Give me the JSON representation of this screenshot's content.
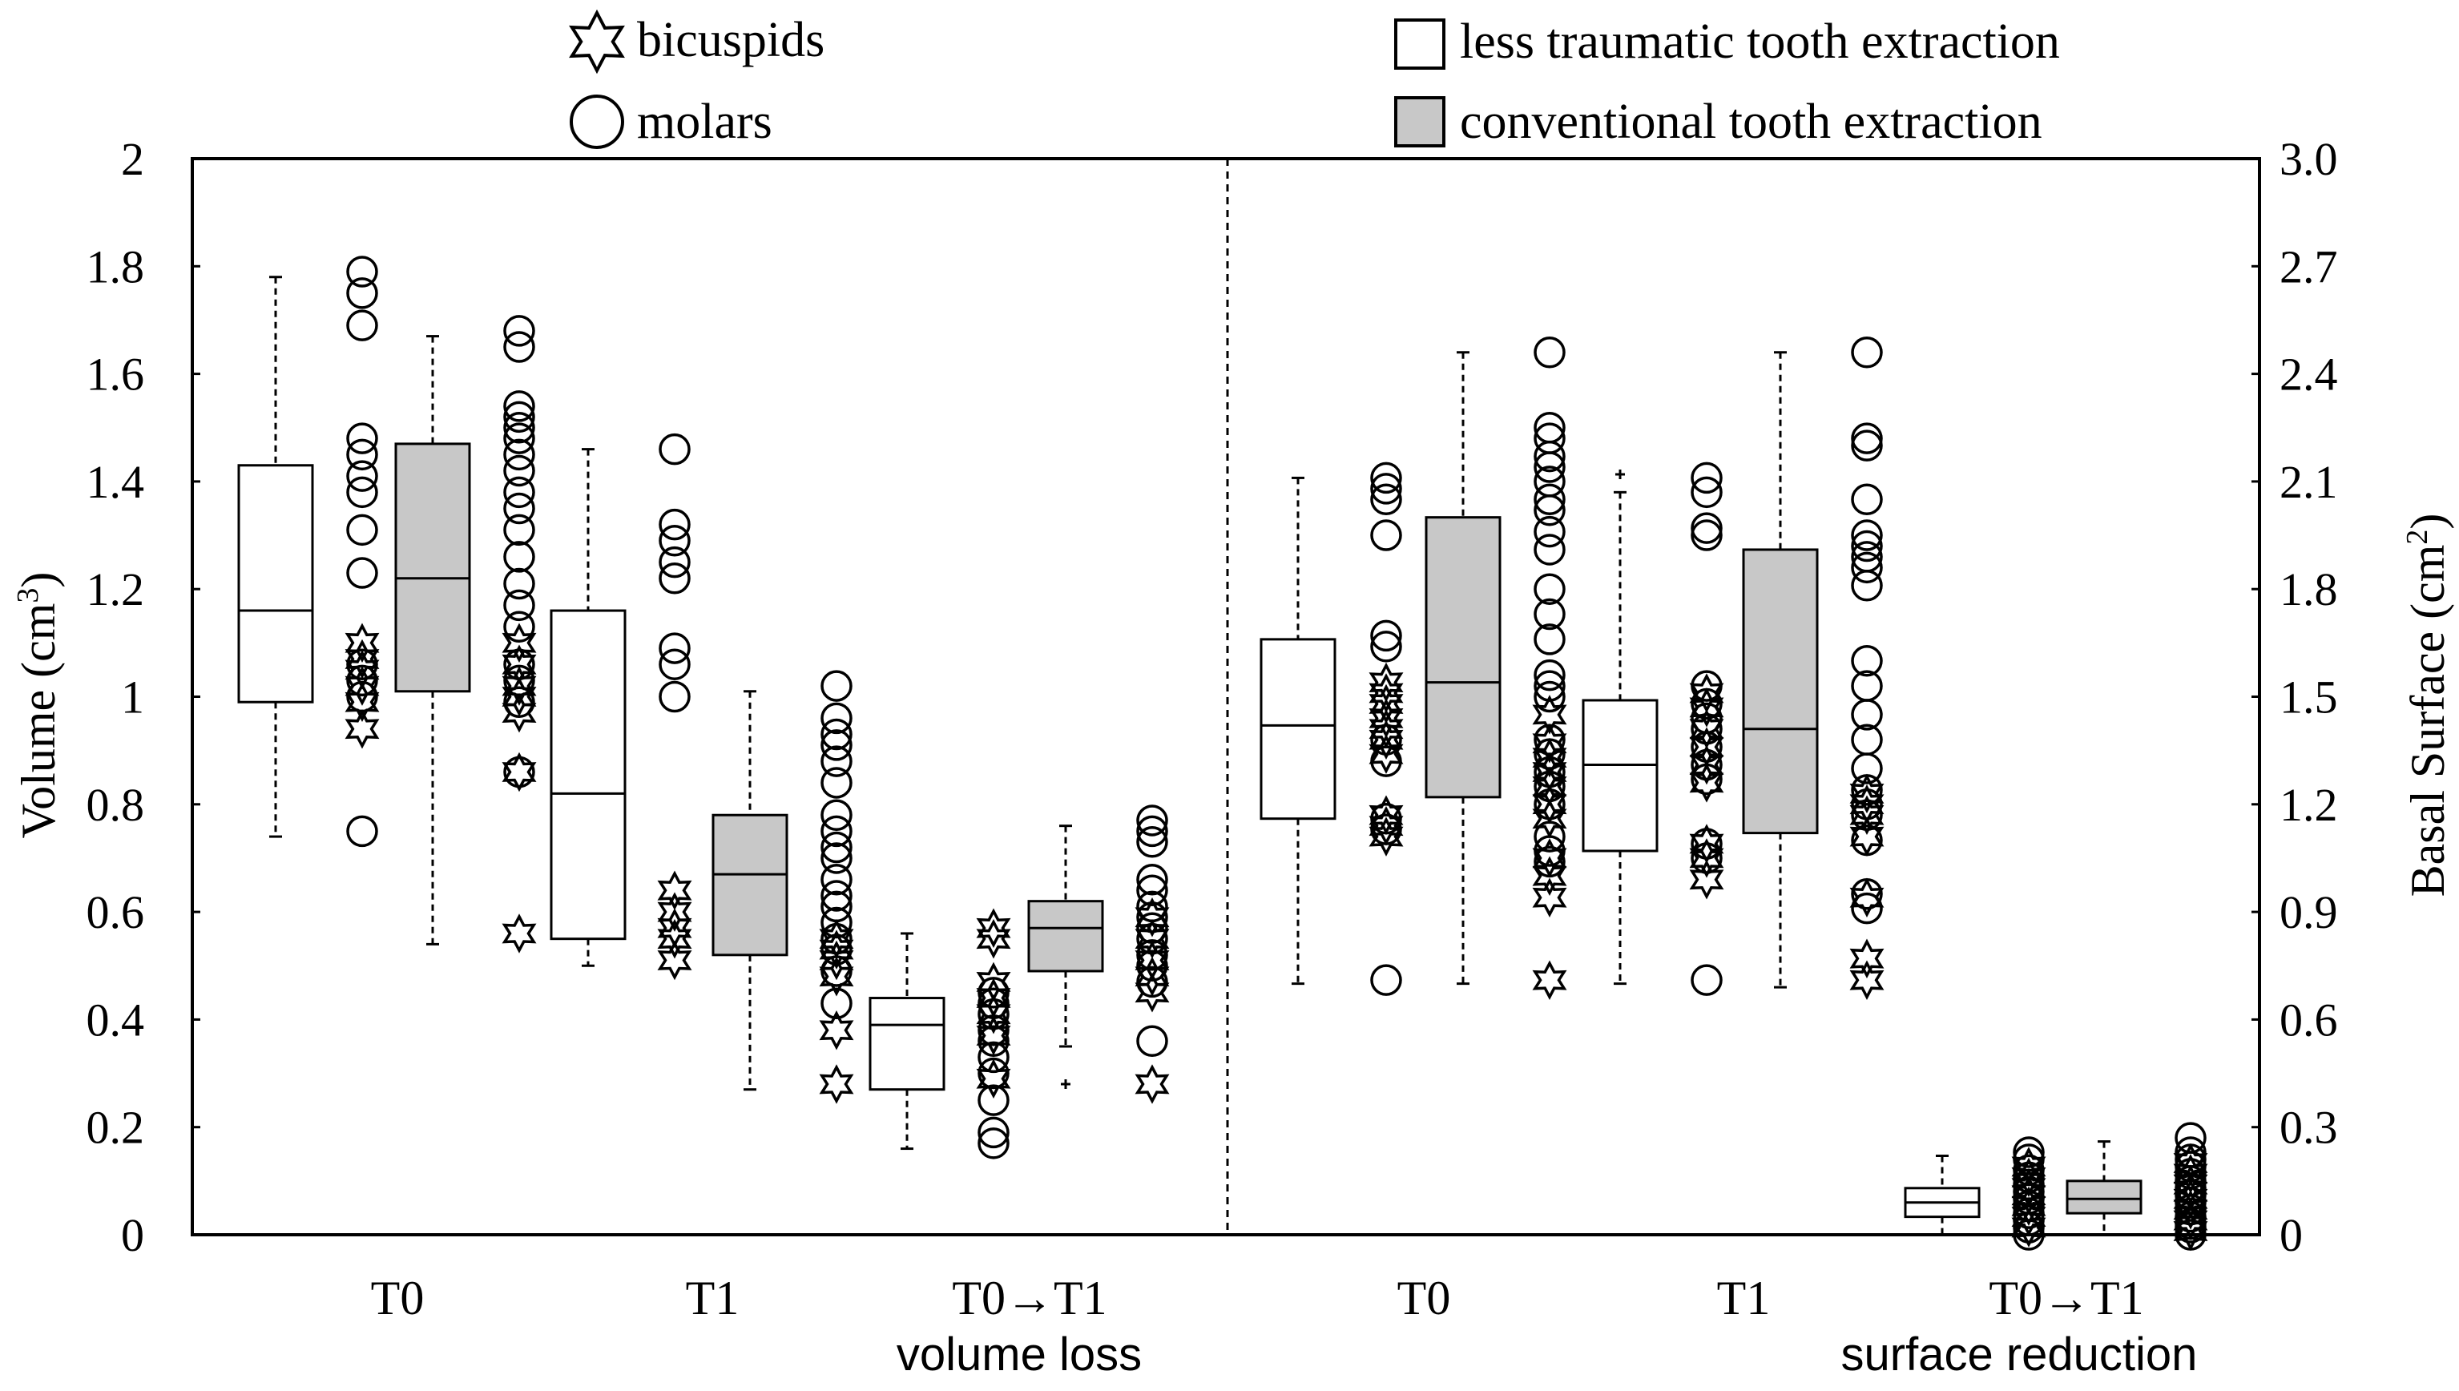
{
  "chart_data": {
    "type": "boxplot",
    "legend": {
      "placement": "top",
      "markers": [
        {
          "symbol": "star",
          "label": "bicuspids"
        },
        {
          "symbol": "circle",
          "label": "molars"
        }
      ],
      "boxes": [
        {
          "fill": "white",
          "label": "less traumatic tooth extraction"
        },
        {
          "fill": "gray",
          "label": "conventional tooth extraction"
        }
      ]
    },
    "colors": {
      "ink": "#000000",
      "conventional_fill": "#c8c8c8",
      "less_traumatic_fill": "#ffffff"
    },
    "left_axis": {
      "label": "Volume (cm",
      "label_sup": "3",
      "label_end": ")",
      "ylim": [
        0,
        2
      ],
      "ticks": [
        0,
        0.2,
        0.4,
        0.6,
        0.8,
        1,
        1.2,
        1.4,
        1.6,
        1.8,
        2
      ],
      "tick_labels": [
        "0",
        "0.2",
        "0.4",
        "0.6",
        "0.8",
        "1",
        "1.2",
        "1.4",
        "1.6",
        "1.8",
        "2"
      ]
    },
    "right_axis": {
      "label": "Basal Surface (cm",
      "label_sup": "2",
      "label_end": ")",
      "ylim": [
        0,
        3
      ],
      "ticks": [
        0,
        0.3,
        0.6,
        0.9,
        1.2,
        1.5,
        1.8,
        2.1,
        2.4,
        2.7,
        3
      ],
      "tick_labels": [
        "0",
        "0.3",
        "0.6",
        "0.9",
        "1.2",
        "1.5",
        "1.8",
        "2.1",
        "2.4",
        "2.7",
        "3.0"
      ]
    },
    "x_groups": [
      {
        "label": "T0",
        "center": 1.5
      },
      {
        "label": "T1",
        "center": 3.5
      },
      {
        "label": "T0→T1",
        "center": 5.5
      },
      {
        "label": "T0",
        "center": 8
      },
      {
        "label": "T1",
        "center": 10
      },
      {
        "label": "T0→T1",
        "center": 12
      }
    ],
    "section_labels": [
      {
        "text": "volume loss",
        "center": 5.4
      },
      {
        "text": "surface  reduction",
        "center": 11.5
      }
    ],
    "divider_x": 6.5,
    "x_domain": [
      0,
      13.2
    ],
    "boxes": [
      {
        "panel": "volume",
        "group": "T0",
        "condition": "less traumatic tooth extraction",
        "x": 0.5,
        "whisker_low": 0.74,
        "q1": 0.99,
        "median": 1.16,
        "q3": 1.43,
        "whisker_high": 1.78,
        "outliers": []
      },
      {
        "panel": "volume",
        "group": "T0",
        "condition": "conventional tooth extraction",
        "x": 2.5,
        "whisker_low": 0.54,
        "q1": 1.01,
        "median": 1.22,
        "q3": 1.47,
        "whisker_high": 1.67,
        "outliers": []
      },
      {
        "panel": "volume",
        "group": "T1",
        "condition": "less traumatic tooth extraction",
        "x": 4.5,
        "whisker_low": 0.5,
        "q1": 0.55,
        "median": 0.82,
        "q3": 1.16,
        "whisker_high": 1.46,
        "outliers": []
      },
      {
        "panel": "volume",
        "group": "T1",
        "condition": "conventional tooth extraction",
        "x": 6.5,
        "whisker_low": 0.27,
        "q1": 0.52,
        "median": 0.67,
        "q3": 0.78,
        "whisker_high": 1.01,
        "outliers": []
      },
      {
        "panel": "volume",
        "group": "T0→T1",
        "condition": "less traumatic tooth extraction",
        "x": 8.5,
        "whisker_low": 0.16,
        "q1": 0.27,
        "median": 0.39,
        "q3": 0.44,
        "whisker_high": 0.56,
        "outliers": []
      },
      {
        "panel": "volume",
        "group": "T0→T1",
        "condition": "conventional tooth extraction",
        "x": 10.5,
        "whisker_low": 0.35,
        "q1": 0.49,
        "median": 0.57,
        "q3": 0.62,
        "whisker_high": 0.76,
        "outliers": [
          0.28
        ]
      },
      {
        "panel": "surface",
        "group": "T0",
        "condition": "less traumatic tooth extraction",
        "x": 13,
        "whisker_low": 0.7,
        "q1": 1.16,
        "median": 1.42,
        "q3": 1.66,
        "whisker_high": 2.11,
        "outliers": []
      },
      {
        "panel": "surface",
        "group": "T0",
        "condition": "conventional tooth extraction",
        "x": 15,
        "whisker_low": 0.7,
        "q1": 1.22,
        "median": 1.54,
        "q3": 2.0,
        "whisker_high": 2.46,
        "outliers": []
      },
      {
        "panel": "surface",
        "group": "T1",
        "condition": "less traumatic tooth extraction",
        "x": 17,
        "whisker_low": 0.7,
        "q1": 1.07,
        "median": 1.31,
        "q3": 1.49,
        "whisker_high": 2.07,
        "outliers": [
          2.12
        ]
      },
      {
        "panel": "surface",
        "group": "T1",
        "condition": "conventional tooth extraction",
        "x": 19,
        "whisker_low": 0.69,
        "q1": 1.12,
        "median": 1.41,
        "q3": 1.91,
        "whisker_high": 2.46,
        "outliers": []
      },
      {
        "panel": "surface",
        "group": "T0→T1",
        "condition": "less traumatic tooth extraction",
        "x": 21,
        "whisker_low": 0.0,
        "q1": 0.05,
        "median": 0.09,
        "q3": 0.13,
        "whisker_high": 0.22,
        "outliers": []
      },
      {
        "panel": "surface",
        "group": "T0→T1",
        "condition": "conventional tooth extraction",
        "x": 23,
        "whisker_low": 0.0,
        "q1": 0.06,
        "median": 0.1,
        "q3": 0.15,
        "whisker_high": 0.26,
        "outliers": []
      }
    ],
    "scatters": [
      {
        "panel": "volume",
        "group": "T0",
        "after": "less traumatic tooth extraction",
        "molars": [
          0.75,
          1.0,
          1.03,
          1.06,
          1.23,
          1.31,
          1.38,
          1.41,
          1.45,
          1.48,
          1.69,
          1.75,
          1.79
        ],
        "bicuspids": [
          0.94,
          0.99,
          1.02,
          1.05,
          1.07,
          1.1
        ]
      },
      {
        "panel": "volume",
        "group": "T0",
        "after": "conventional tooth extraction",
        "molars": [
          0.86,
          0.99,
          1.03,
          1.06,
          1.13,
          1.17,
          1.21,
          1.26,
          1.31,
          1.35,
          1.38,
          1.42,
          1.45,
          1.48,
          1.5,
          1.52,
          1.54,
          1.65,
          1.68
        ],
        "bicuspids": [
          0.56,
          0.86,
          0.97,
          1.0,
          1.02,
          1.06,
          1.1
        ]
      },
      {
        "panel": "volume",
        "group": "T1",
        "after": "less traumatic tooth extraction",
        "molars": [
          1.0,
          1.06,
          1.09,
          1.22,
          1.25,
          1.29,
          1.32,
          1.46
        ],
        "bicuspids": [
          0.51,
          0.55,
          0.57,
          0.6,
          0.64
        ]
      },
      {
        "panel": "volume",
        "group": "T1",
        "after": "conventional tooth extraction",
        "molars": [
          0.43,
          0.49,
          0.53,
          0.55,
          0.58,
          0.61,
          0.63,
          0.66,
          0.7,
          0.72,
          0.75,
          0.78,
          0.84,
          0.88,
          0.91,
          0.93,
          0.96,
          1.02
        ],
        "bicuspids": [
          0.28,
          0.38,
          0.48,
          0.51,
          0.53,
          0.55
        ]
      },
      {
        "panel": "volume",
        "group": "T0→T1",
        "after": "less traumatic tooth extraction",
        "molars": [
          0.17,
          0.19,
          0.25,
          0.3,
          0.33,
          0.36,
          0.38,
          0.41,
          0.43,
          0.45
        ],
        "bicuspids": [
          0.29,
          0.37,
          0.41,
          0.44,
          0.47,
          0.55,
          0.57
        ]
      },
      {
        "panel": "volume",
        "group": "T0→T1",
        "after": "conventional tooth extraction",
        "molars": [
          0.36,
          0.47,
          0.5,
          0.52,
          0.55,
          0.57,
          0.59,
          0.61,
          0.64,
          0.66,
          0.73,
          0.75,
          0.77
        ],
        "bicuspids": [
          0.28,
          0.45,
          0.48,
          0.51,
          0.55,
          0.59
        ]
      },
      {
        "panel": "surface",
        "group": "T0",
        "after": "less traumatic tooth extraction",
        "molars": [
          0.71,
          1.13,
          1.16,
          1.32,
          1.38,
          1.64,
          1.67,
          1.95,
          2.05,
          2.08,
          2.11
        ],
        "bicuspids": [
          1.11,
          1.14,
          1.17,
          1.34,
          1.38,
          1.41,
          1.44,
          1.48,
          1.51,
          1.54
        ]
      },
      {
        "panel": "surface",
        "group": "T0",
        "after": "conventional tooth extraction",
        "molars": [
          1.04,
          1.07,
          1.11,
          1.2,
          1.25,
          1.29,
          1.34,
          1.38,
          1.5,
          1.53,
          1.56,
          1.66,
          1.73,
          1.8,
          1.91,
          1.96,
          2.02,
          2.05,
          2.1,
          2.14,
          2.17,
          2.22,
          2.25,
          2.46
        ],
        "bicuspids": [
          0.71,
          0.94,
          1.0,
          1.05,
          1.16,
          1.2,
          1.25,
          1.29,
          1.33,
          1.37,
          1.45
        ]
      },
      {
        "panel": "surface",
        "group": "T1",
        "after": "less traumatic tooth extraction",
        "molars": [
          0.71,
          1.05,
          1.09,
          1.27,
          1.31,
          1.36,
          1.41,
          1.44,
          1.48,
          1.53,
          1.95,
          1.97,
          2.07,
          2.11
        ],
        "bicuspids": [
          0.99,
          1.05,
          1.09,
          1.26,
          1.31,
          1.36,
          1.41,
          1.47,
          1.51
        ]
      },
      {
        "panel": "surface",
        "group": "T1",
        "after": "conventional tooth extraction",
        "molars": [
          0.91,
          0.95,
          1.1,
          1.17,
          1.2,
          1.24,
          1.3,
          1.38,
          1.45,
          1.53,
          1.6,
          1.81,
          1.86,
          1.89,
          1.92,
          1.95,
          2.05,
          2.2,
          2.22,
          2.46
        ],
        "bicuspids": [
          0.71,
          0.77,
          0.94,
          1.11,
          1.17,
          1.2,
          1.23
        ]
      },
      {
        "panel": "surface",
        "group": "T0→T1",
        "after": "less traumatic tooth extraction",
        "molars": [
          0.0,
          0.02,
          0.04,
          0.06,
          0.08,
          0.1,
          0.12,
          0.14,
          0.16,
          0.18,
          0.21,
          0.23
        ],
        "bicuspids": [
          0.02,
          0.05,
          0.08,
          0.11,
          0.13,
          0.16,
          0.19
        ]
      },
      {
        "panel": "surface",
        "group": "T0→T1",
        "after": "conventional tooth extraction",
        "molars": [
          0.0,
          0.02,
          0.03,
          0.05,
          0.07,
          0.09,
          0.11,
          0.13,
          0.15,
          0.17,
          0.19,
          0.21,
          0.23,
          0.27
        ],
        "bicuspids": [
          0.01,
          0.04,
          0.07,
          0.1,
          0.12,
          0.14,
          0.17,
          0.2
        ]
      }
    ]
  }
}
